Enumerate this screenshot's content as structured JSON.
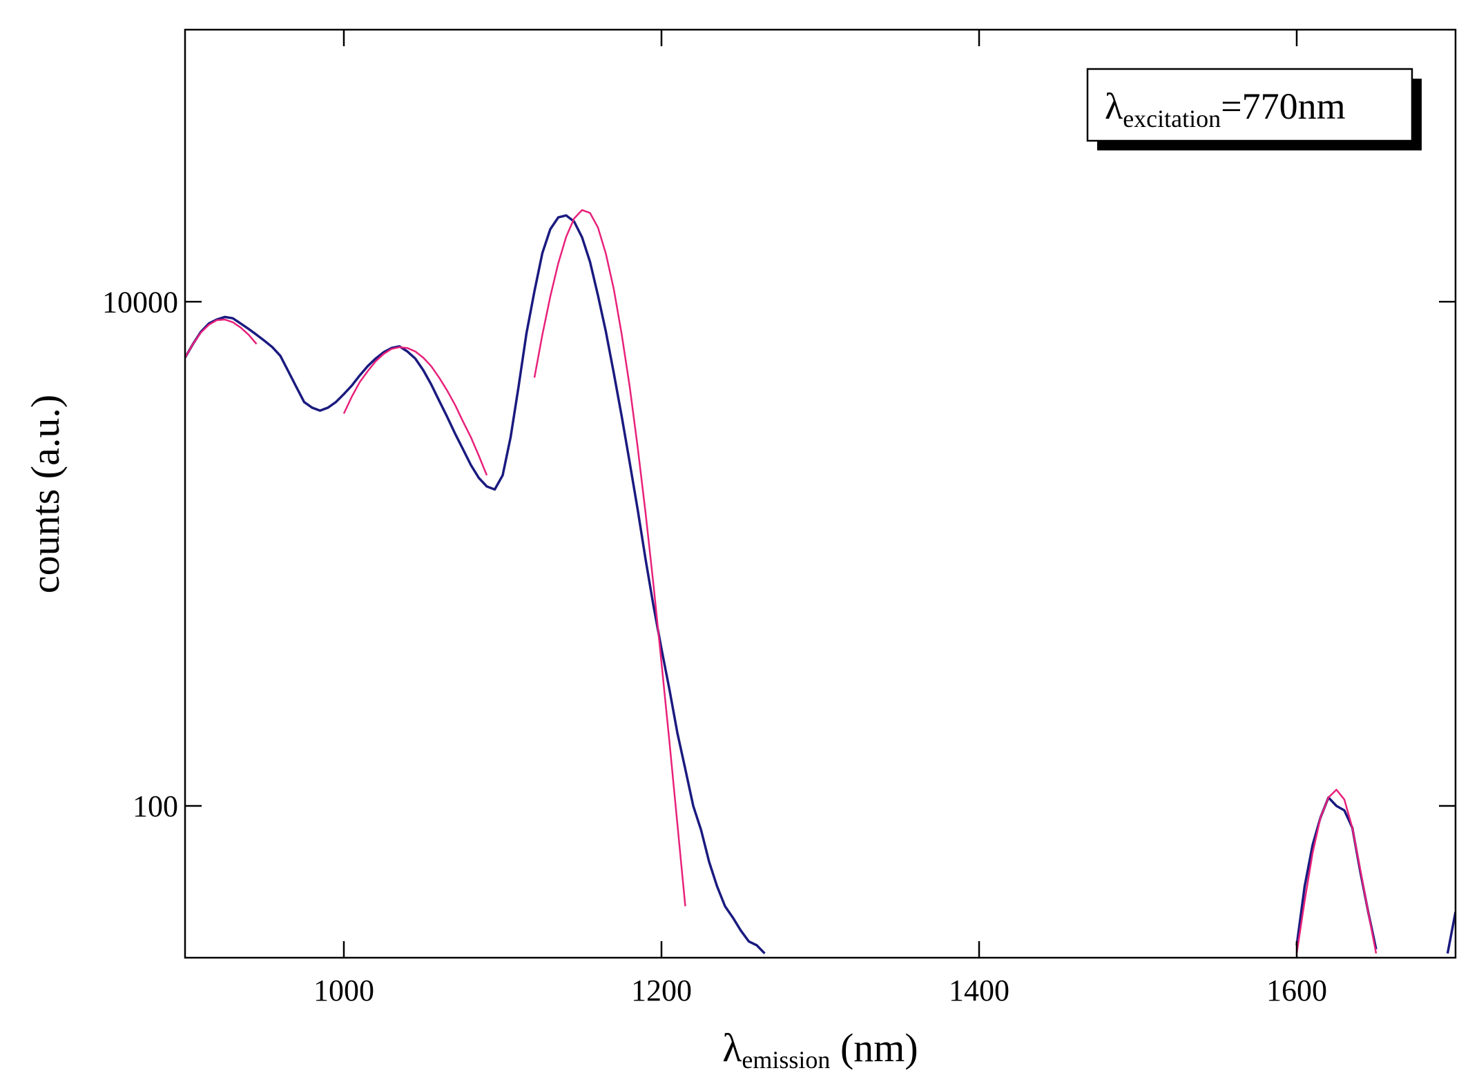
{
  "chart_data": {
    "type": "line",
    "title": "",
    "xlabel": {
      "symbol": "λ",
      "sub": "emission",
      "rest": " (nm)"
    },
    "ylabel": "counts (a.u.)",
    "annotation": {
      "symbol": "λ",
      "sub": "excitation",
      "rest": "=770nm"
    },
    "xlim": [
      900,
      1700
    ],
    "ylim": [
      25,
      120000
    ],
    "y_scale": "log",
    "grid": false,
    "x_ticks": [
      1000,
      1200,
      1400,
      1600
    ],
    "x_tick_labels": [
      "1000",
      "1200",
      "1400",
      "1600"
    ],
    "y_ticks": [
      100,
      10000
    ],
    "y_tick_labels": [
      "100",
      "10000"
    ],
    "colors": {
      "data": "#1a1a80",
      "fit": "#e8207a"
    },
    "series": [
      {
        "role": "data",
        "segments": [
          {
            "x": [
              900,
              905,
              910,
              915,
              920,
              925,
              930,
              935,
              940,
              945,
              950,
              955,
              960,
              965,
              970,
              975,
              980,
              985,
              990,
              995,
              1000,
              1005,
              1010,
              1015,
              1020,
              1025,
              1030,
              1035,
              1040,
              1045,
              1050,
              1055,
              1060,
              1065,
              1070,
              1075,
              1080,
              1085,
              1090,
              1095,
              1100,
              1105,
              1110,
              1115,
              1120,
              1125,
              1130,
              1135,
              1140,
              1145,
              1150,
              1155,
              1160,
              1165,
              1170,
              1175,
              1180,
              1185,
              1190,
              1195,
              1200,
              1205,
              1210,
              1215,
              1220,
              1225,
              1230,
              1235,
              1240,
              1245,
              1250,
              1255,
              1260,
              1265
            ],
            "y": [
              6000,
              6800,
              7600,
              8200,
              8500,
              8700,
              8600,
              8200,
              7800,
              7400,
              7000,
              6600,
              6100,
              5300,
              4600,
              4000,
              3800,
              3700,
              3800,
              4000,
              4300,
              4650,
              5100,
              5550,
              5950,
              6300,
              6550,
              6650,
              6350,
              5950,
              5350,
              4700,
              4050,
              3500,
              3000,
              2600,
              2250,
              2000,
              1850,
              1800,
              2050,
              2900,
              4600,
              7500,
              11000,
              15600,
              19400,
              21600,
              22000,
              20800,
              18000,
              14400,
              10600,
              7600,
              5200,
              3500,
              2300,
              1500,
              950,
              620,
              420,
              290,
              195,
              140,
              100,
              80,
              60,
              48,
              40,
              36,
              32,
              29,
              28,
              26
            ]
          },
          {
            "x": [
              1600,
              1605,
              1610,
              1615,
              1620,
              1625,
              1630,
              1635,
              1640,
              1645,
              1650
            ],
            "y": [
              28,
              48,
              70,
              90,
              108,
              100,
              96,
              82,
              55,
              38,
              27
            ]
          },
          {
            "x": [
              1695,
              1700
            ],
            "y": [
              26,
              38
            ]
          }
        ]
      },
      {
        "role": "fit",
        "segments": [
          {
            "x": [
              900,
              905,
              910,
              915,
              920,
              925,
              930,
              935,
              940,
              945
            ],
            "y": [
              6000,
              6800,
              7550,
              8100,
              8450,
              8500,
              8300,
              7900,
              7400,
              6800
            ]
          },
          {
            "x": [
              1000,
              1005,
              1010,
              1015,
              1020,
              1025,
              1030,
              1035,
              1040,
              1045,
              1050,
              1055,
              1060,
              1065,
              1070,
              1075,
              1080,
              1085,
              1090
            ],
            "y": [
              3600,
              4200,
              4800,
              5300,
              5800,
              6200,
              6500,
              6600,
              6550,
              6350,
              6000,
              5550,
              5000,
              4450,
              3900,
              3350,
              2900,
              2450,
              2050
            ]
          },
          {
            "x": [
              1120,
              1125,
              1130,
              1135,
              1140,
              1145,
              1150,
              1155,
              1160,
              1165,
              1170,
              1175,
              1180,
              1185,
              1190,
              1195,
              1200,
              1205,
              1210,
              1215
            ],
            "y": [
              5000,
              7400,
              10500,
              14200,
              18100,
              21400,
              23100,
              22500,
              19700,
              15500,
              11200,
              7400,
              4600,
              2650,
              1450,
              750,
              370,
              180,
              85,
              40
            ]
          },
          {
            "x": [
              1600,
              1605,
              1610,
              1615,
              1620,
              1625,
              1630,
              1635,
              1640,
              1645,
              1650
            ],
            "y": [
              26,
              42,
              65,
              90,
              108,
              116,
              106,
              82,
              56,
              38,
              26
            ]
          }
        ]
      }
    ]
  }
}
